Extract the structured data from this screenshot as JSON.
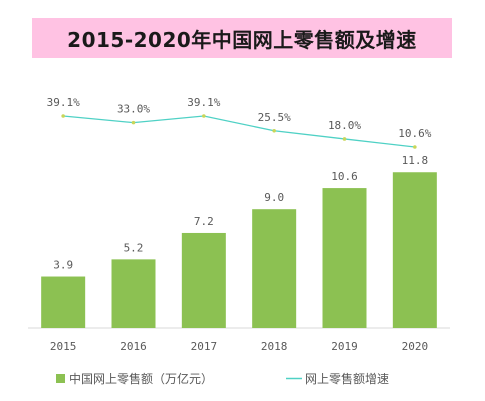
{
  "header": {
    "title": "2015-2020年中国网上零售额及增速"
  },
  "colors": {
    "bar": "#8cc152",
    "line": "#4fd1c5",
    "marker": "#c8d65a",
    "axis": "#d9d9d9",
    "title_bg": "#ffc2e3"
  },
  "chart_data": {
    "type": "bar",
    "categories": [
      "2015",
      "2016",
      "2017",
      "2018",
      "2019",
      "2020"
    ],
    "series": [
      {
        "name": "中国网上零售额（万亿元）",
        "type": "bar",
        "values": [
          3.9,
          5.2,
          7.2,
          9.0,
          10.6,
          11.8
        ],
        "labels": [
          "3.9",
          "5.2",
          "7.2",
          "9.0",
          "10.6",
          "11.8"
        ]
      },
      {
        "name": "网上零售额增速",
        "type": "line",
        "values": [
          39.1,
          33.0,
          39.1,
          25.5,
          18.0,
          10.6
        ],
        "labels": [
          "39.1%",
          "33.0%",
          "39.1%",
          "25.5%",
          "18.0%",
          "10.6%"
        ]
      }
    ],
    "title": "2015-2020年中国网上零售额及增速",
    "xlabel": "",
    "ylabel": "",
    "legend_position": "bottom"
  }
}
